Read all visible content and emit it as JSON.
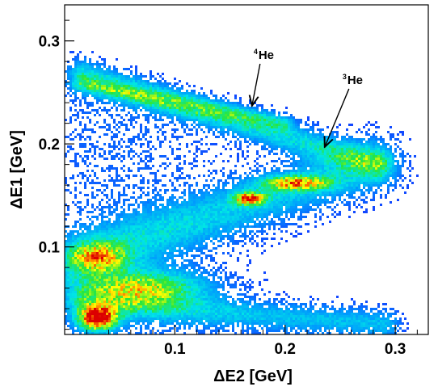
{
  "chart_data": {
    "type": "heatmap",
    "title": "",
    "xlabel": "ΔE2 [GeV]",
    "ylabel": "ΔE1 [GeV]",
    "xlim": [
      0.0,
      0.33
    ],
    "ylim": [
      0.015,
      0.335
    ],
    "x_ticks": [
      {
        "value": 0.1,
        "label": "0.1"
      },
      {
        "value": 0.2,
        "label": "0.2"
      },
      {
        "value": 0.3,
        "label": "0.3"
      }
    ],
    "y_ticks": [
      {
        "value": 0.1,
        "label": "0.1"
      },
      {
        "value": 0.2,
        "label": "0.2"
      },
      {
        "value": 0.3,
        "label": "0.3"
      }
    ],
    "colormap": "rainbow",
    "bands": [
      {
        "from": [
          0.016,
          0.268
        ],
        "to": [
          0.283,
          0.18
        ],
        "width": 0.01,
        "intensity": 0.35
      },
      {
        "from": [
          0.016,
          0.258
        ],
        "to": [
          0.2,
          0.22
        ],
        "width": 0.006,
        "intensity": 0.25
      },
      {
        "from": [
          0.016,
          0.09
        ],
        "to": [
          0.28,
          0.18
        ],
        "width": 0.018,
        "intensity": 0.3
      },
      {
        "from": [
          0.016,
          0.045
        ],
        "to": [
          0.29,
          0.025
        ],
        "width": 0.01,
        "intensity": 0.28
      }
    ],
    "hot_spots": [
      {
        "x": 0.03,
        "y": 0.03,
        "sx": 0.012,
        "sy": 0.008,
        "intensity": 1.0
      },
      {
        "x": 0.07,
        "y": 0.06,
        "sx": 0.04,
        "sy": 0.012,
        "intensity": 0.6
      },
      {
        "x": 0.168,
        "y": 0.147,
        "sx": 0.01,
        "sy": 0.004,
        "intensity": 0.75
      },
      {
        "x": 0.21,
        "y": 0.162,
        "sx": 0.022,
        "sy": 0.005,
        "intensity": 0.6
      },
      {
        "x": 0.03,
        "y": 0.09,
        "sx": 0.018,
        "sy": 0.01,
        "intensity": 0.5
      }
    ],
    "annotations": [
      {
        "text": "He",
        "superscript": "4",
        "target": [
          0.17,
          0.237
        ]
      },
      {
        "text": "He",
        "superscript": "3",
        "target": [
          0.236,
          0.197
        ]
      }
    ]
  }
}
